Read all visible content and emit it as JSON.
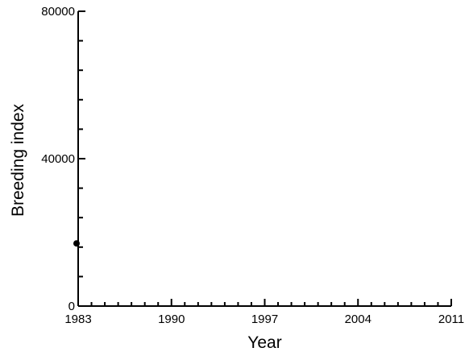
{
  "chart_data": {
    "type": "scatter",
    "title": "",
    "xlabel": "Year",
    "ylabel": "Breeding index",
    "xlim": [
      1983,
      2011
    ],
    "ylim": [
      0,
      80000
    ],
    "x_ticks": [
      1983,
      1990,
      1997,
      2004,
      2011
    ],
    "x_tick_labels": [
      "1983",
      "1990",
      "1997",
      "2004",
      "2011"
    ],
    "y_ticks": [
      0,
      40000,
      80000
    ],
    "y_tick_labels": [
      "0",
      "40000",
      "80000"
    ],
    "x_minor_step": 1,
    "y_minor_step": 8000,
    "grid": false,
    "series": [
      {
        "x": [
          1983
        ],
        "y": [
          17000
        ],
        "color": "#000000"
      }
    ]
  }
}
